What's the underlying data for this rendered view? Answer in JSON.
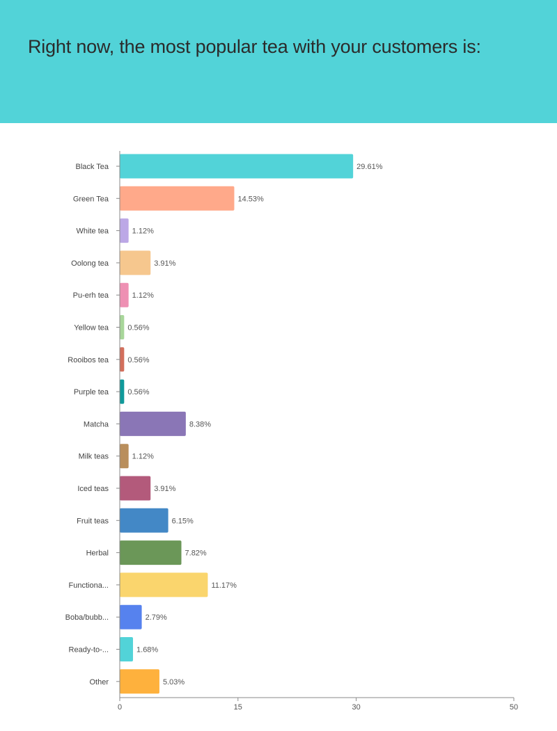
{
  "header": {
    "title": "Right now, the most popular tea with your customers is:",
    "background": "#52d3d8"
  },
  "chart_data": {
    "type": "bar",
    "orientation": "horizontal",
    "title": "Right now, the most popular tea with your customers is:",
    "xlabel": "",
    "ylabel": "",
    "xlim": [
      0,
      50
    ],
    "xticks": [
      0,
      15,
      30,
      50
    ],
    "grid": false,
    "categories": [
      "Black Tea",
      "Green Tea",
      "White tea",
      "Oolong tea",
      "Pu-erh tea",
      "Yellow tea",
      "Rooibos tea",
      "Purple tea",
      "Matcha",
      "Milk teas",
      "Iced teas",
      "Fruit teas",
      "Herbal",
      "Functiona...",
      "Boba/bubb...",
      "Ready-to-...",
      "Other"
    ],
    "values": [
      29.61,
      14.53,
      1.12,
      3.91,
      1.12,
      0.56,
      0.56,
      0.56,
      8.38,
      1.12,
      3.91,
      6.15,
      7.82,
      11.17,
      2.79,
      1.68,
      5.03
    ],
    "value_labels": [
      "29.61%",
      "14.53%",
      "1.12%",
      "3.91%",
      "1.12%",
      "0.56%",
      "0.56%",
      "0.56%",
      "8.38%",
      "1.12%",
      "3.91%",
      "6.15%",
      "7.82%",
      "11.17%",
      "2.79%",
      "1.68%",
      "5.03%"
    ],
    "colors": [
      "#52d3d8",
      "#ffa98a",
      "#bca8e6",
      "#f6c78e",
      "#ee90b3",
      "#a8d69a",
      "#d26f5c",
      "#109a9b",
      "#8a76b6",
      "#b98e5c",
      "#b35a7b",
      "#4388c6",
      "#6b9758",
      "#fad56d",
      "#5682ee",
      "#52d3d8",
      "#feb13d"
    ]
  }
}
